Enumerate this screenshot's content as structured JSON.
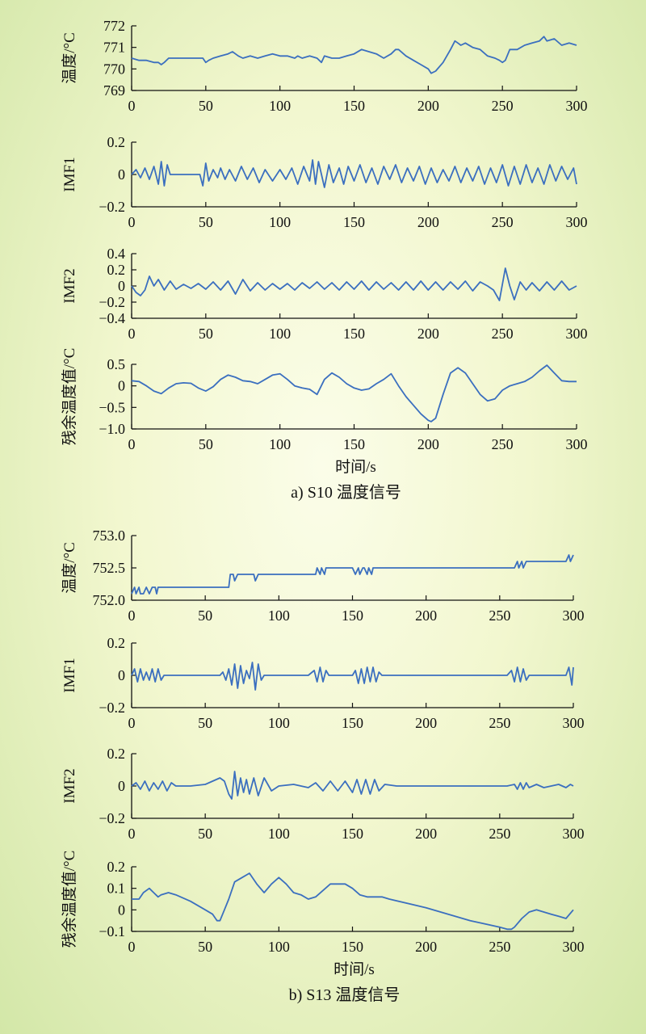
{
  "chart_data": [
    {
      "group": "a",
      "type": "line",
      "ylabel": "温度/°C",
      "xlim": [
        0,
        300
      ],
      "ylim": [
        769,
        772
      ],
      "yticks": [
        "769",
        "770",
        "771",
        "772"
      ],
      "xticks": [
        "0",
        "50",
        "100",
        "150",
        "200",
        "250",
        "300"
      ],
      "line_color": "#3b6fbf",
      "x": [
        0,
        5,
        10,
        15,
        18,
        20,
        22,
        25,
        30,
        40,
        48,
        50,
        52,
        55,
        60,
        65,
        68,
        70,
        72,
        75,
        80,
        85,
        90,
        95,
        100,
        105,
        110,
        112,
        115,
        120,
        125,
        128,
        130,
        135,
        140,
        145,
        150,
        155,
        160,
        165,
        170,
        175,
        178,
        180,
        185,
        190,
        195,
        200,
        202,
        205,
        210,
        215,
        218,
        220,
        222,
        225,
        230,
        235,
        240,
        245,
        248,
        250,
        252,
        255,
        260,
        265,
        270,
        275,
        278,
        280,
        285,
        290,
        295,
        300
      ],
      "values": [
        770.5,
        770.4,
        770.4,
        770.3,
        770.3,
        770.2,
        770.3,
        770.5,
        770.5,
        770.5,
        770.5,
        770.3,
        770.4,
        770.5,
        770.6,
        770.7,
        770.8,
        770.7,
        770.6,
        770.5,
        770.6,
        770.5,
        770.6,
        770.7,
        770.6,
        770.6,
        770.5,
        770.6,
        770.5,
        770.6,
        770.5,
        770.3,
        770.6,
        770.5,
        770.5,
        770.6,
        770.7,
        770.9,
        770.8,
        770.7,
        770.5,
        770.7,
        770.9,
        770.9,
        770.6,
        770.4,
        770.2,
        770.0,
        769.8,
        769.9,
        770.3,
        770.9,
        771.3,
        771.2,
        771.1,
        771.2,
        771.0,
        770.9,
        770.6,
        770.5,
        770.4,
        770.3,
        770.4,
        770.9,
        770.9,
        771.1,
        771.2,
        771.3,
        771.5,
        771.3,
        771.4,
        771.1,
        771.2,
        771.1
      ]
    },
    {
      "group": "a",
      "type": "line",
      "ylabel": "IMF1",
      "xlim": [
        0,
        300
      ],
      "ylim": [
        -0.2,
        0.2
      ],
      "yticks": [
        "−0.2",
        "0",
        "0.2"
      ],
      "xticks": [
        "0",
        "50",
        "100",
        "150",
        "200",
        "250",
        "300"
      ],
      "line_color": "#3b6fbf",
      "x": [
        0,
        3,
        6,
        9,
        12,
        15,
        18,
        20,
        22,
        24,
        26,
        30,
        40,
        46,
        48,
        50,
        52,
        55,
        58,
        60,
        63,
        66,
        70,
        74,
        78,
        82,
        86,
        90,
        95,
        100,
        104,
        108,
        112,
        116,
        120,
        122,
        124,
        126,
        130,
        133,
        136,
        140,
        143,
        146,
        150,
        154,
        158,
        162,
        166,
        170,
        174,
        178,
        182,
        186,
        190,
        194,
        198,
        202,
        206,
        210,
        214,
        218,
        222,
        226,
        230,
        234,
        238,
        242,
        246,
        250,
        254,
        258,
        262,
        266,
        270,
        274,
        278,
        282,
        286,
        290,
        294,
        298,
        300
      ],
      "values": [
        0,
        0.03,
        -0.02,
        0.04,
        -0.03,
        0.05,
        -0.06,
        0.08,
        -0.07,
        0.06,
        0,
        0,
        0,
        0,
        -0.07,
        0.07,
        -0.04,
        0.03,
        -0.02,
        0.04,
        -0.03,
        0.03,
        -0.04,
        0.05,
        -0.03,
        0.04,
        -0.05,
        0.03,
        -0.04,
        0.03,
        -0.03,
        0.04,
        -0.06,
        0.05,
        -0.04,
        0.09,
        -0.06,
        0.08,
        -0.08,
        0.06,
        -0.05,
        0.04,
        -0.06,
        0.05,
        -0.04,
        0.06,
        -0.05,
        0.04,
        -0.06,
        0.05,
        -0.03,
        0.06,
        -0.05,
        0.04,
        -0.04,
        0.05,
        -0.06,
        0.04,
        -0.05,
        0.03,
        -0.04,
        0.05,
        -0.05,
        0.04,
        -0.04,
        0.05,
        -0.06,
        0.04,
        -0.05,
        0.06,
        -0.07,
        0.05,
        -0.06,
        0.06,
        -0.05,
        0.04,
        -0.06,
        0.06,
        -0.04,
        0.05,
        -0.03,
        0.04,
        -0.06
      ]
    },
    {
      "group": "a",
      "type": "line",
      "ylabel": "IMF2",
      "xlim": [
        0,
        300
      ],
      "ylim": [
        -0.4,
        0.4
      ],
      "yticks": [
        "−0.4",
        "−0.2",
        "0",
        "0.2",
        "0.4"
      ],
      "xticks": [
        "0",
        "50",
        "100",
        "150",
        "200",
        "250",
        "300"
      ],
      "line_color": "#3b6fbf",
      "x": [
        0,
        3,
        6,
        9,
        12,
        15,
        18,
        22,
        26,
        30,
        35,
        40,
        45,
        50,
        55,
        60,
        65,
        70,
        75,
        80,
        85,
        90,
        95,
        100,
        105,
        110,
        115,
        120,
        125,
        130,
        135,
        140,
        145,
        150,
        155,
        160,
        165,
        170,
        175,
        180,
        185,
        190,
        195,
        200,
        205,
        210,
        215,
        220,
        225,
        230,
        235,
        240,
        244,
        248,
        252,
        255,
        258,
        262,
        266,
        270,
        275,
        280,
        285,
        290,
        295,
        300
      ],
      "values": [
        0,
        -0.08,
        -0.12,
        -0.05,
        0.12,
        0,
        0.08,
        -0.05,
        0.06,
        -0.04,
        0.02,
        -0.03,
        0.03,
        -0.04,
        0.05,
        -0.05,
        0.06,
        -0.1,
        0.08,
        -0.06,
        0.04,
        -0.05,
        0.03,
        -0.04,
        0.03,
        -0.05,
        0.04,
        -0.03,
        0.05,
        -0.04,
        0.04,
        -0.05,
        0.05,
        -0.04,
        0.06,
        -0.05,
        0.05,
        -0.04,
        0.04,
        -0.05,
        0.05,
        -0.05,
        0.06,
        -0.05,
        0.05,
        -0.05,
        0.05,
        -0.04,
        0.06,
        -0.06,
        0.05,
        0,
        -0.05,
        -0.18,
        0.22,
        0.0,
        -0.17,
        0.05,
        -0.05,
        0.04,
        -0.06,
        0.05,
        -0.05,
        0.06,
        -0.05,
        0.0
      ]
    },
    {
      "group": "a",
      "type": "line",
      "ylabel": "残余温度值/°C",
      "xlabel": "时间/s",
      "caption": "a) S10 温度信号",
      "xlim": [
        0,
        300
      ],
      "ylim": [
        -1.0,
        0.5
      ],
      "yticks": [
        "−1.0",
        "−0.5",
        "0",
        "0.5"
      ],
      "xticks": [
        "0",
        "50",
        "100",
        "150",
        "200",
        "250",
        "300"
      ],
      "line_color": "#3b6fbf",
      "x": [
        0,
        5,
        10,
        15,
        20,
        25,
        30,
        35,
        40,
        45,
        50,
        55,
        60,
        65,
        70,
        75,
        80,
        85,
        90,
        95,
        100,
        105,
        110,
        115,
        120,
        125,
        130,
        135,
        140,
        145,
        150,
        155,
        160,
        165,
        170,
        175,
        180,
        185,
        190,
        195,
        200,
        202,
        205,
        210,
        215,
        220,
        225,
        230,
        235,
        240,
        245,
        250,
        255,
        260,
        265,
        270,
        275,
        280,
        285,
        290,
        295,
        300
      ],
      "values": [
        0.12,
        0.1,
        0.0,
        -0.12,
        -0.18,
        -0.05,
        0.05,
        0.07,
        0.06,
        -0.05,
        -0.12,
        -0.02,
        0.15,
        0.25,
        0.2,
        0.12,
        0.1,
        0.05,
        0.15,
        0.25,
        0.28,
        0.15,
        0.0,
        -0.05,
        -0.08,
        -0.2,
        0.15,
        0.3,
        0.2,
        0.05,
        -0.05,
        -0.1,
        -0.07,
        0.05,
        0.15,
        0.28,
        0.0,
        -0.25,
        -0.45,
        -0.65,
        -0.8,
        -0.83,
        -0.75,
        -0.2,
        0.3,
        0.42,
        0.3,
        0.05,
        -0.2,
        -0.35,
        -0.3,
        -0.1,
        0.0,
        0.05,
        0.1,
        0.2,
        0.35,
        0.48,
        0.3,
        0.12,
        0.1,
        0.1
      ]
    },
    {
      "group": "b",
      "type": "line",
      "ylabel": "温度/°C",
      "xlim": [
        0,
        300
      ],
      "ylim": [
        752.0,
        753.0
      ],
      "yticks": [
        "752.0",
        "752.5",
        "753.0"
      ],
      "xticks": [
        "0",
        "50",
        "100",
        "150",
        "200",
        "250",
        "300"
      ],
      "line_color": "#3b6fbf",
      "x": [
        0,
        2,
        3,
        5,
        6,
        8,
        10,
        12,
        14,
        16,
        17,
        18,
        60,
        66,
        67,
        69,
        70,
        72,
        74,
        80,
        83,
        84,
        86,
        100,
        125,
        126,
        128,
        129,
        131,
        132,
        135,
        150,
        152,
        154,
        155,
        157,
        158,
        160,
        161,
        163,
        164,
        170,
        200,
        250,
        260,
        262,
        263,
        265,
        266,
        268,
        270,
        295,
        297,
        298,
        300
      ],
      "values": [
        752.1,
        752.2,
        752.1,
        752.2,
        752.1,
        752.1,
        752.2,
        752.1,
        752.2,
        752.2,
        752.1,
        752.2,
        752.2,
        752.2,
        752.4,
        752.4,
        752.3,
        752.4,
        752.4,
        752.4,
        752.4,
        752.3,
        752.4,
        752.4,
        752.4,
        752.5,
        752.4,
        752.5,
        752.4,
        752.5,
        752.5,
        752.5,
        752.4,
        752.5,
        752.4,
        752.5,
        752.5,
        752.4,
        752.5,
        752.4,
        752.5,
        752.5,
        752.5,
        752.5,
        752.5,
        752.6,
        752.5,
        752.6,
        752.5,
        752.6,
        752.6,
        752.6,
        752.7,
        752.6,
        752.7
      ]
    },
    {
      "group": "b",
      "type": "line",
      "ylabel": "IMF1",
      "xlim": [
        0,
        300
      ],
      "ylim": [
        -0.2,
        0.2
      ],
      "yticks": [
        "−0.2",
        "0",
        "0.2"
      ],
      "xticks": [
        "0",
        "50",
        "100",
        "150",
        "200",
        "250",
        "300"
      ],
      "line_color": "#3b6fbf",
      "x": [
        0,
        2,
        4,
        6,
        8,
        10,
        12,
        14,
        16,
        18,
        20,
        22,
        60,
        62,
        64,
        66,
        68,
        70,
        72,
        74,
        76,
        78,
        80,
        82,
        84,
        86,
        88,
        90,
        120,
        124,
        126,
        128,
        130,
        132,
        134,
        150,
        152,
        154,
        156,
        158,
        160,
        162,
        164,
        166,
        168,
        170,
        255,
        258,
        260,
        262,
        264,
        266,
        268,
        270,
        295,
        297,
        299,
        300
      ],
      "values": [
        0,
        0.04,
        -0.04,
        0.04,
        -0.03,
        0.02,
        -0.03,
        0.04,
        -0.04,
        0.04,
        -0.03,
        0,
        0,
        0.02,
        -0.03,
        0.04,
        -0.06,
        0.07,
        -0.08,
        0.06,
        -0.05,
        0.03,
        -0.02,
        0.08,
        -0.09,
        0.07,
        -0.03,
        0,
        0,
        0.03,
        -0.04,
        0.05,
        -0.04,
        0.03,
        0,
        0,
        0.03,
        -0.05,
        0.04,
        -0.05,
        0.05,
        -0.04,
        0.05,
        -0.04,
        0.02,
        0,
        0,
        0.03,
        -0.04,
        0.05,
        -0.04,
        0.04,
        -0.03,
        0,
        0,
        0.05,
        -0.06,
        0.05
      ]
    },
    {
      "group": "b",
      "type": "line",
      "ylabel": "IMF2",
      "xlim": [
        0,
        300
      ],
      "ylim": [
        -0.2,
        0.2
      ],
      "yticks": [
        "−0.2",
        "0",
        "0.2"
      ],
      "xticks": [
        "0",
        "50",
        "100",
        "150",
        "200",
        "250",
        "300"
      ],
      "line_color": "#3b6fbf",
      "x": [
        0,
        3,
        6,
        9,
        12,
        15,
        18,
        21,
        24,
        27,
        30,
        40,
        50,
        55,
        60,
        63,
        66,
        68,
        70,
        72,
        74,
        76,
        78,
        80,
        83,
        86,
        90,
        95,
        100,
        110,
        120,
        125,
        130,
        135,
        140,
        145,
        150,
        153,
        156,
        159,
        162,
        165,
        168,
        172,
        180,
        200,
        220,
        240,
        255,
        260,
        262,
        264,
        266,
        268,
        270,
        275,
        280,
        290,
        295,
        298,
        300
      ],
      "values": [
        0,
        0.02,
        -0.02,
        0.03,
        -0.03,
        0.02,
        -0.02,
        0.03,
        -0.03,
        0.02,
        0,
        0,
        0.01,
        0.03,
        0.05,
        0.03,
        -0.05,
        -0.08,
        0.09,
        -0.06,
        0.05,
        -0.04,
        0.04,
        -0.05,
        0.05,
        -0.06,
        0.05,
        -0.03,
        0,
        0.01,
        -0.01,
        0.02,
        -0.03,
        0.03,
        -0.03,
        0.03,
        -0.04,
        0.04,
        -0.05,
        0.04,
        -0.05,
        0.04,
        -0.03,
        0.01,
        0,
        0,
        0,
        0,
        0,
        0.01,
        -0.02,
        0.02,
        -0.02,
        0.02,
        -0.01,
        0.01,
        -0.01,
        0.01,
        -0.01,
        0.01,
        0
      ]
    },
    {
      "group": "b",
      "type": "line",
      "ylabel": "残余温度值/°C",
      "xlabel": "时间/s",
      "caption": "b) S13 温度信号",
      "xlim": [
        0,
        300
      ],
      "ylim": [
        -0.1,
        0.2
      ],
      "yticks": [
        "−0.1",
        "0",
        "0.1",
        "0.2"
      ],
      "xticks": [
        "0",
        "50",
        "100",
        "150",
        "200",
        "250",
        "300"
      ],
      "line_color": "#3b6fbf",
      "x": [
        0,
        5,
        8,
        12,
        15,
        18,
        20,
        25,
        30,
        40,
        50,
        55,
        58,
        60,
        63,
        66,
        70,
        75,
        80,
        85,
        90,
        95,
        100,
        105,
        110,
        115,
        120,
        125,
        130,
        135,
        140,
        145,
        150,
        155,
        160,
        165,
        170,
        175,
        200,
        230,
        250,
        255,
        258,
        260,
        265,
        270,
        275,
        280,
        285,
        290,
        295,
        300
      ],
      "values": [
        0.05,
        0.05,
        0.08,
        0.1,
        0.08,
        0.06,
        0.07,
        0.08,
        0.07,
        0.04,
        0.0,
        -0.02,
        -0.05,
        -0.05,
        0.0,
        0.05,
        0.13,
        0.15,
        0.17,
        0.12,
        0.08,
        0.12,
        0.15,
        0.12,
        0.08,
        0.07,
        0.05,
        0.06,
        0.09,
        0.12,
        0.12,
        0.12,
        0.1,
        0.07,
        0.06,
        0.06,
        0.06,
        0.05,
        0.01,
        -0.05,
        -0.08,
        -0.09,
        -0.09,
        -0.08,
        -0.04,
        -0.01,
        0.0,
        -0.01,
        -0.02,
        -0.03,
        -0.04,
        0.0
      ]
    }
  ]
}
